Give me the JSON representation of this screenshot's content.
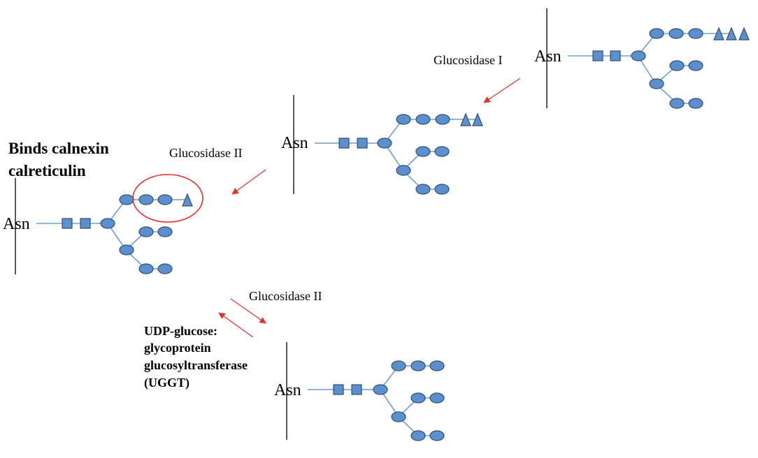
{
  "labels": {
    "asn": "Asn",
    "binds_line1": "Binds calnexin",
    "binds_line2": "calreticulin",
    "glucosidase_i": "Glucosidase I",
    "glucosidase_ii_top": "Glucosidase II",
    "glucosidase_ii_bottom": "Glucosidase II",
    "uggt_line1": "UDP-glucose:",
    "uggt_line2": "glycoprotein",
    "uggt_line3": "glucosyltransferase",
    "uggt_line4": "(UGGT)"
  },
  "structures": [
    {
      "id": "glc3",
      "glucose_count": 3
    },
    {
      "id": "glc2",
      "glucose_count": 2
    },
    {
      "id": "glc1",
      "glucose_count": 1
    },
    {
      "id": "glc0",
      "glucose_count": 0
    }
  ],
  "colors": {
    "sugar_fill": "#5b8fcd",
    "sugar_stroke": "#2f4f70",
    "link": "#6f9fd0",
    "arrow": "#e8302a",
    "highlight_circle": "#e8302a"
  }
}
